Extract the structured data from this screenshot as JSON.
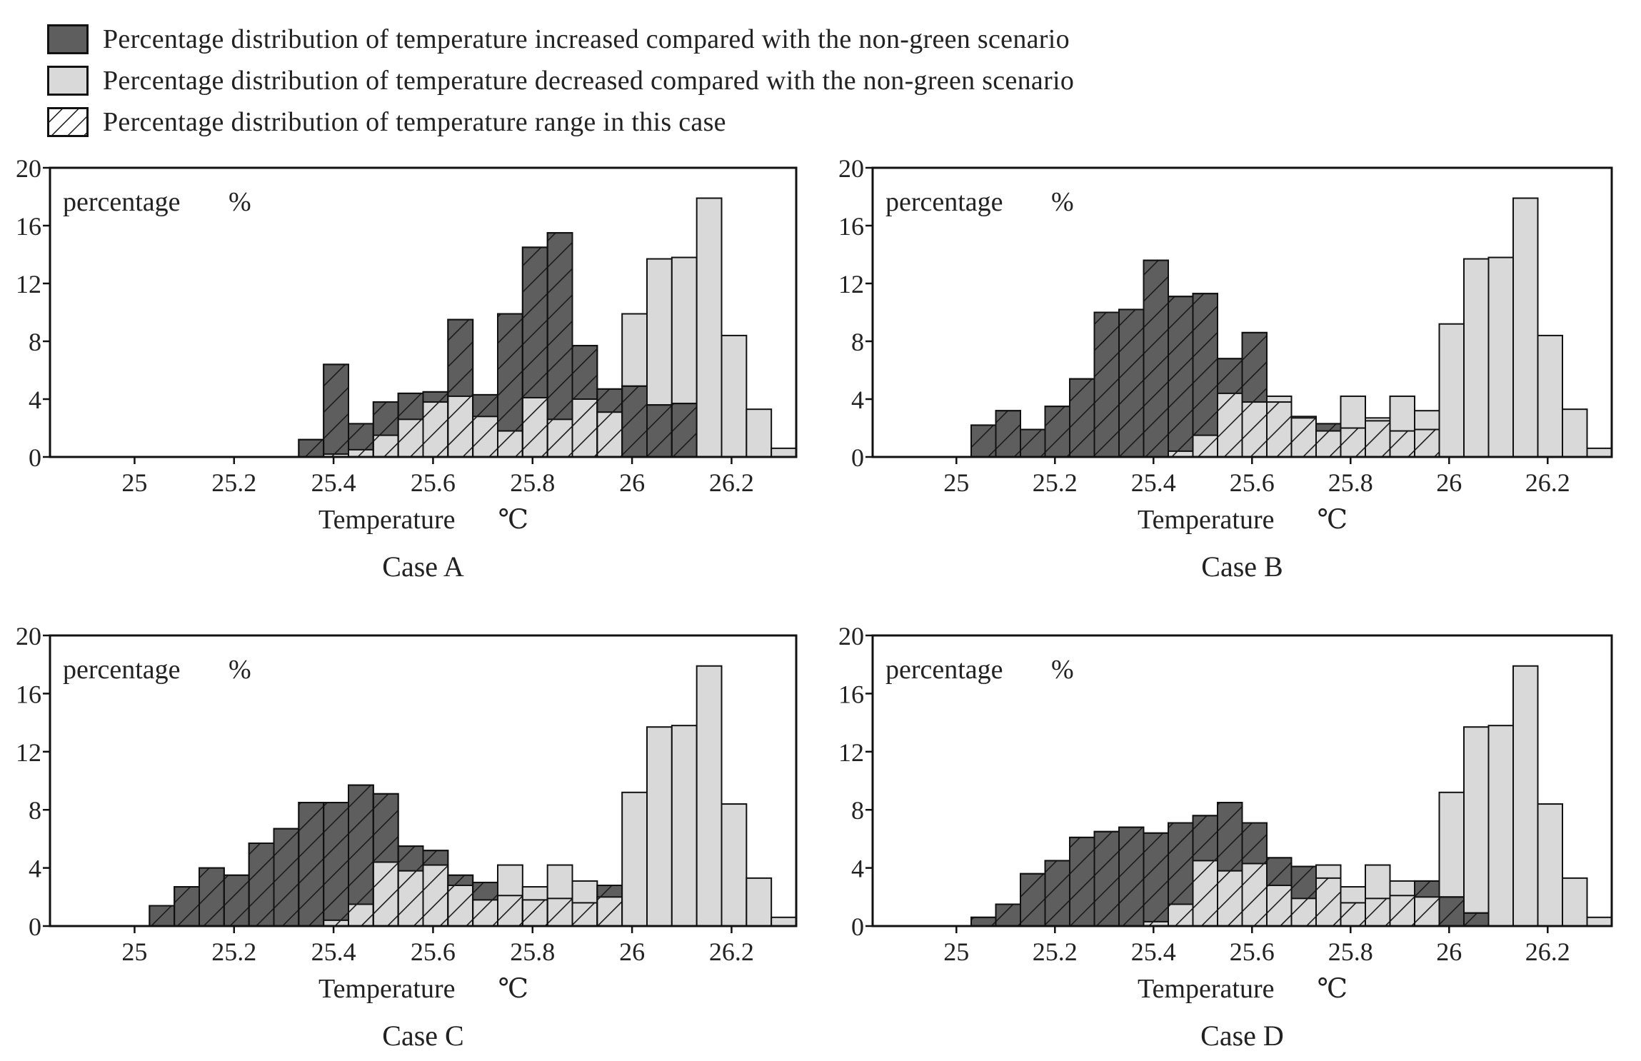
{
  "legend": {
    "increased_label": "Percentage distribution of temperature increased compared with the non-green scenario",
    "decreased_label": "Percentage distribution of temperature decreased compared with the non-green scenario",
    "range_label": "Percentage distribution of temperature range in this case"
  },
  "colors": {
    "increased": "#5e5e5e",
    "decreased": "#d9d9d9",
    "hatch": "#1a1a1a",
    "axis": "#111111"
  },
  "chart_data": [
    {
      "type": "bar",
      "title": "Case A",
      "xlabel": "Temperature",
      "ylabel": "percentage",
      "ylabel_unit": "%",
      "xlabel_unit": "℃",
      "xlim": [
        24.83,
        26.33
      ],
      "ylim": [
        0,
        20
      ],
      "bin_start": 24.83,
      "bin_width": 0.05,
      "yticks": [
        "0",
        "4",
        "8",
        "12",
        "16",
        "20"
      ],
      "xticks": [
        "25",
        "25.2",
        "25.4",
        "25.6",
        "25.8",
        "26",
        "26.2"
      ],
      "series": [
        {
          "name": "Percentage distribution of temperature decreased compared with the non-green scenario",
          "values": [
            0,
            0,
            0,
            0,
            0,
            0,
            0,
            0,
            0,
            0,
            0,
            0.2,
            0.5,
            1.5,
            2.6,
            3.8,
            4.2,
            2.8,
            1.8,
            4.1,
            2.6,
            4.0,
            3.1,
            5.0,
            3.6,
            3.7,
            0,
            0,
            0,
            0
          ]
        },
        {
          "name": "Percentage distribution of temperature increased compared with the non-green scenario",
          "values": [
            0,
            0,
            0,
            0,
            0,
            0,
            0,
            0,
            0,
            0,
            1.2,
            6.4,
            2.3,
            3.8,
            4.4,
            4.5,
            9.5,
            4.3,
            9.9,
            14.5,
            15.5,
            7.7,
            4.7,
            4.9,
            3.6,
            3.7,
            0,
            0,
            0,
            0
          ]
        },
        {
          "name": "Percentage distribution of temperature range in this case",
          "values": [
            0,
            0,
            0,
            0,
            0,
            0,
            0,
            0,
            0,
            0,
            1.2,
            6.4,
            2.3,
            3.8,
            4.4,
            4.5,
            9.5,
            4.3,
            9.9,
            14.5,
            15.5,
            7.7,
            4.7,
            9.2,
            13.7,
            13.8,
            17.9,
            8.4,
            3.3,
            0.6
          ]
        }
      ]
    },
    {
      "type": "bar",
      "title": "Case B",
      "xlabel": "Temperature",
      "ylabel": "percentage",
      "ylabel_unit": "%",
      "xlabel_unit": "℃",
      "xlim": [
        24.83,
        26.33
      ],
      "ylim": [
        0,
        20
      ],
      "bin_start": 24.83,
      "bin_width": 0.05,
      "yticks": [
        "0",
        "4",
        "8",
        "12",
        "16",
        "20"
      ],
      "xticks": [
        "25",
        "25.2",
        "25.4",
        "25.6",
        "25.8",
        "26",
        "26.2"
      ],
      "series": [
        {
          "name": "Percentage distribution of temperature decreased compared with the non-green scenario",
          "values": [
            0,
            0,
            0,
            0,
            0,
            0,
            0,
            0,
            0,
            0,
            0,
            0,
            0.4,
            1.5,
            4.4,
            3.8,
            4.2,
            2.8,
            1.8,
            4.2,
            2.7,
            4.2,
            3.2,
            2.1,
            0.8,
            0,
            0,
            0,
            0,
            0
          ]
        },
        {
          "name": "Percentage distribution of temperature increased compared with the non-green scenario",
          "values": [
            0,
            0,
            0,
            0,
            2.2,
            3.2,
            1.9,
            3.5,
            5.4,
            10.0,
            10.2,
            13.6,
            11.1,
            11.3,
            6.8,
            8.6,
            3.8,
            2.7,
            2.3,
            2.0,
            2.5,
            1.8,
            1.9,
            0,
            0,
            0,
            0,
            0,
            0,
            0
          ]
        },
        {
          "name": "Percentage distribution of temperature range in this case",
          "values": [
            0,
            0,
            0,
            0,
            2.2,
            3.2,
            1.9,
            3.5,
            5.4,
            10.0,
            10.2,
            13.6,
            11.1,
            11.3,
            6.8,
            8.6,
            3.8,
            2.7,
            2.3,
            2.0,
            2.5,
            1.8,
            1.9,
            9.2,
            13.7,
            13.8,
            17.9,
            8.4,
            3.3,
            0.6
          ]
        }
      ]
    },
    {
      "type": "bar",
      "title": "Case C",
      "xlabel": "Temperature",
      "ylabel": "percentage",
      "ylabel_unit": "%",
      "xlabel_unit": "℃",
      "xlim": [
        24.83,
        26.33
      ],
      "ylim": [
        0,
        20
      ],
      "bin_start": 24.83,
      "bin_width": 0.05,
      "yticks": [
        "0",
        "4",
        "8",
        "12",
        "16",
        "20"
      ],
      "xticks": [
        "25",
        "25.2",
        "25.4",
        "25.6",
        "25.8",
        "26",
        "26.2"
      ],
      "series": [
        {
          "name": "Percentage distribution of temperature decreased compared with the non-green scenario",
          "values": [
            0,
            0,
            0,
            0,
            0,
            0,
            0,
            0,
            0,
            0,
            0,
            0.4,
            1.5,
            4.4,
            3.8,
            4.2,
            2.8,
            1.8,
            4.2,
            2.7,
            4.2,
            3.1,
            2.0,
            1.0,
            0,
            0,
            0,
            0,
            0,
            0
          ]
        },
        {
          "name": "Percentage distribution of temperature increased compared with the non-green scenario",
          "values": [
            0,
            0,
            0,
            0,
            1.4,
            2.7,
            4.0,
            3.5,
            5.7,
            6.7,
            8.5,
            8.5,
            9.7,
            9.1,
            5.5,
            5.2,
            3.5,
            3.0,
            2.1,
            1.8,
            1.9,
            1.6,
            2.8,
            0,
            0,
            0,
            0,
            0,
            0,
            0
          ]
        },
        {
          "name": "Percentage distribution of temperature range in this case",
          "values": [
            0,
            0,
            0,
            0,
            1.4,
            2.7,
            4.0,
            3.5,
            5.7,
            6.7,
            8.5,
            8.5,
            9.7,
            9.1,
            5.5,
            5.2,
            3.5,
            3.0,
            2.1,
            1.8,
            1.9,
            1.6,
            2.8,
            9.2,
            13.7,
            13.8,
            17.9,
            8.4,
            3.3,
            0.6
          ]
        }
      ]
    },
    {
      "type": "bar",
      "title": "Case D",
      "xlabel": "Temperature",
      "ylabel": "percentage",
      "ylabel_unit": "%",
      "xlabel_unit": "℃",
      "xlim": [
        24.83,
        26.33
      ],
      "ylim": [
        0,
        20
      ],
      "bin_start": 24.83,
      "bin_width": 0.05,
      "yticks": [
        "0",
        "4",
        "8",
        "12",
        "16",
        "20"
      ],
      "xticks": [
        "25",
        "25.2",
        "25.4",
        "25.6",
        "25.8",
        "26",
        "26.2"
      ],
      "series": [
        {
          "name": "Percentage distribution of temperature decreased compared with the non-green scenario",
          "values": [
            0,
            0,
            0,
            0,
            0,
            0,
            0,
            0,
            0,
            0,
            0,
            0.3,
            1.5,
            4.5,
            3.8,
            4.3,
            2.8,
            1.9,
            4.2,
            2.7,
            4.2,
            3.1,
            2.0,
            0.9,
            0,
            0,
            0,
            0,
            0,
            0
          ]
        },
        {
          "name": "Percentage distribution of temperature increased compared with the non-green scenario",
          "values": [
            0,
            0,
            0,
            0,
            0.6,
            1.5,
            3.6,
            4.5,
            6.1,
            6.5,
            6.8,
            6.4,
            7.1,
            7.6,
            8.5,
            7.1,
            4.7,
            4.1,
            3.3,
            1.6,
            1.9,
            2.1,
            3.1,
            2.0,
            0.9,
            0,
            0,
            0,
            0,
            0
          ]
        },
        {
          "name": "Percentage distribution of temperature range in this case",
          "values": [
            0,
            0,
            0,
            0,
            0.6,
            1.5,
            3.6,
            4.5,
            6.1,
            6.5,
            6.8,
            6.4,
            7.1,
            7.6,
            8.5,
            7.1,
            4.7,
            4.1,
            3.3,
            1.6,
            1.9,
            2.1,
            3.1,
            9.2,
            13.7,
            13.8,
            17.9,
            8.4,
            3.3,
            0.6
          ]
        }
      ]
    }
  ]
}
